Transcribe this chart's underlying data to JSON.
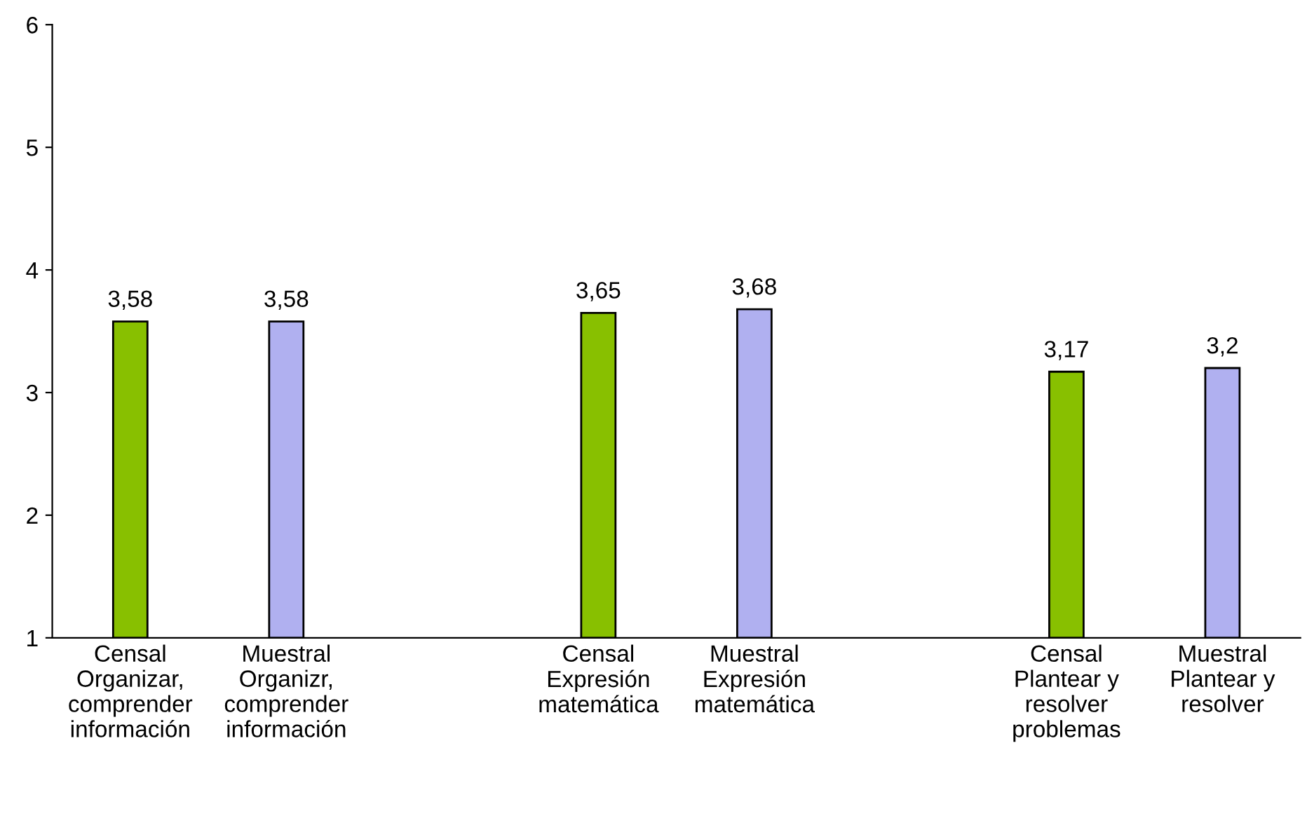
{
  "chart_data": {
    "type": "bar",
    "categories": [
      "Censal\nOrganizar,\ncomprender\ninformación",
      "Muestral\nOrganizr,\ncomprender\ninformación",
      null,
      "Censal\nExpresión\nmatemática",
      "Muestral\nExpresión\nmatemática",
      null,
      "Censal\nPlantear y\nresolver\nproblemas",
      "Muestral\nPlantear y\nresolver"
    ],
    "values": [
      3.58,
      3.58,
      null,
      3.65,
      3.68,
      null,
      3.17,
      3.2
    ],
    "colors": [
      "#88c000",
      "#b0b0f0",
      null,
      "#88c000",
      "#b0b0f0",
      null,
      "#88c000",
      "#b0b0f0"
    ],
    "value_labels": [
      "3,58",
      "3,58",
      null,
      "3,65",
      "3,68",
      null,
      "3,17",
      "3,2"
    ],
    "ylim": [
      1,
      6
    ],
    "yticks": [
      1,
      2,
      3,
      4,
      5,
      6
    ],
    "grid": false
  }
}
